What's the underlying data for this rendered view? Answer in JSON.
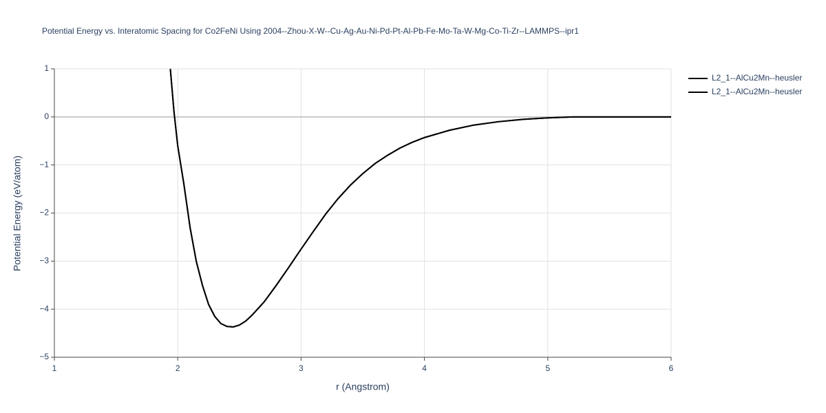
{
  "chart_data": {
    "type": "line",
    "title": "Potential Energy vs. Interatomic Spacing for Co2FeNi Using 2004--Zhou-X-W--Cu-Ag-Au-Ni-Pd-Pt-Al-Pb-Fe-Mo-Ta-W-Mg-Co-Ti-Zr--LAMMPS--ipr1",
    "x_label": "r (Angstrom)",
    "y_label": "Potential Energy (eV/atom)",
    "xlim": [
      1,
      6
    ],
    "ylim": [
      -5,
      1
    ],
    "xticks": [
      1,
      2,
      3,
      4,
      5,
      6
    ],
    "yticks": [
      {
        "value": -5,
        "label": "−5"
      },
      {
        "value": -4,
        "label": "−4"
      },
      {
        "value": -3,
        "label": "−3"
      },
      {
        "value": -2,
        "label": "−2"
      },
      {
        "value": -1,
        "label": "−1"
      },
      0,
      1
    ],
    "grid": true,
    "legend": "right",
    "x": [
      1.94,
      1.97,
      2.0,
      2.05,
      2.1,
      2.15,
      2.2,
      2.25,
      2.3,
      2.35,
      2.4,
      2.45,
      2.5,
      2.55,
      2.6,
      2.7,
      2.8,
      2.9,
      3.0,
      3.1,
      3.2,
      3.3,
      3.4,
      3.5,
      3.6,
      3.7,
      3.8,
      3.9,
      4.0,
      4.2,
      4.4,
      4.6,
      4.8,
      5.0,
      5.2,
      5.5,
      6.0
    ],
    "series": [
      {
        "name": "L2_1--AlCu2Mn--heusler",
        "color": "#000000",
        "values": [
          1,
          0.1,
          -0.6,
          -1.4,
          -2.3,
          -3.0,
          -3.5,
          -3.9,
          -4.15,
          -4.3,
          -4.36,
          -4.37,
          -4.33,
          -4.25,
          -4.13,
          -3.85,
          -3.5,
          -3.13,
          -2.75,
          -2.38,
          -2.02,
          -1.7,
          -1.42,
          -1.18,
          -0.97,
          -0.8,
          -0.65,
          -0.53,
          -0.43,
          -0.28,
          -0.17,
          -0.1,
          -0.05,
          -0.02,
          0,
          0,
          0
        ]
      },
      {
        "name": "L2_1--AlCu2Mn--heusler",
        "color": "#000000",
        "values": [
          1,
          0.1,
          -0.6,
          -1.4,
          -2.3,
          -3.0,
          -3.5,
          -3.9,
          -4.15,
          -4.3,
          -4.36,
          -4.37,
          -4.33,
          -4.25,
          -4.13,
          -3.85,
          -3.5,
          -3.13,
          -2.75,
          -2.38,
          -2.02,
          -1.7,
          -1.42,
          -1.18,
          -0.97,
          -0.8,
          -0.65,
          -0.53,
          -0.43,
          -0.28,
          -0.17,
          -0.1,
          -0.05,
          -0.02,
          0,
          0,
          0
        ]
      }
    ]
  }
}
